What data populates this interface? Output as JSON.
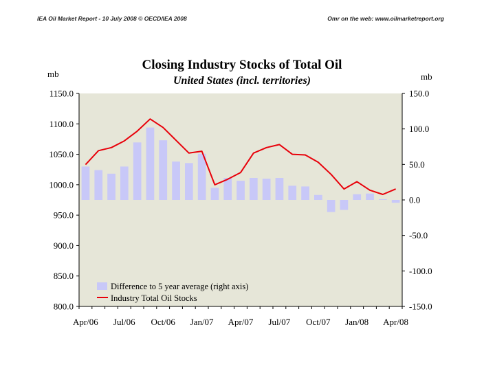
{
  "header": {
    "left": "IEA Oil Market Report - 10 July 2008     © OECD/IEA 2008",
    "right": "Omr on the web: www.oilmarketreport.org"
  },
  "chart_data": {
    "type": "bar+line",
    "title": "Closing Industry Stocks of Total Oil",
    "subtitle": "United States (incl. territories)",
    "ylabel_left": "mb",
    "ylabel_right": "mb",
    "ylim_left": [
      800,
      1150
    ],
    "ylim_right": [
      -150,
      150
    ],
    "left_ticks": [
      "1150.0",
      "1100.0",
      "1050.0",
      "1000.0",
      "950.0",
      "900.0",
      "850.0",
      "800.0"
    ],
    "right_ticks": [
      "150.0",
      "100.0",
      "50.0",
      "0.0",
      "-50.0",
      "-100.0",
      "-150.0"
    ],
    "x_tick_labels": [
      "Apr/06",
      "Jul/06",
      "Oct/06",
      "Jan/07",
      "Apr/07",
      "Jul/07",
      "Oct/07",
      "Jan/08",
      "Apr/08"
    ],
    "categories": [
      "Apr/06",
      "May/06",
      "Jun/06",
      "Jul/06",
      "Aug/06",
      "Sep/06",
      "Oct/06",
      "Nov/06",
      "Dec/06",
      "Jan/07",
      "Feb/07",
      "Mar/07",
      "Apr/07",
      "May/07",
      "Jun/07",
      "Jul/07",
      "Aug/07",
      "Sep/07",
      "Oct/07",
      "Nov/07",
      "Dec/07",
      "Jan/08",
      "Feb/08",
      "Mar/08",
      "Apr/08"
    ],
    "series": [
      {
        "name": "Difference to 5 year average (right axis)",
        "type": "bar",
        "axis": "right",
        "color": "#c8c8f8",
        "values": [
          47,
          42,
          37,
          47,
          81,
          102,
          84,
          54,
          52,
          65,
          17,
          31,
          27,
          31,
          30,
          31,
          20,
          19,
          7,
          -17,
          -14,
          8,
          9,
          1,
          -4
        ]
      },
      {
        "name": "Industry Total Oil Stocks",
        "type": "line",
        "axis": "left",
        "color": "#e8000a",
        "values": [
          1033,
          1056,
          1061,
          1072,
          1088,
          1108,
          1094,
          1073,
          1052,
          1055,
          1000,
          1009,
          1020,
          1052,
          1061,
          1066,
          1050,
          1049,
          1037,
          1017,
          993,
          1005,
          991,
          984,
          993
        ]
      }
    ],
    "legend_position": "bottom-left"
  }
}
